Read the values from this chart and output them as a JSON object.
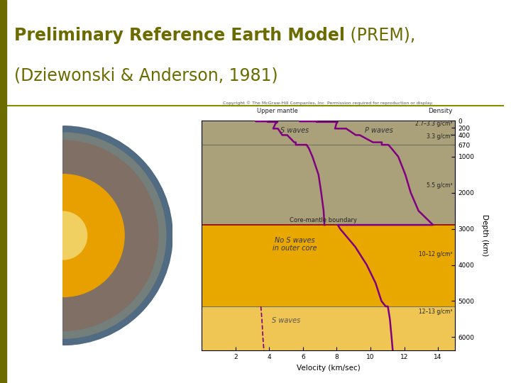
{
  "title_bold": "Preliminary Reference Earth Model",
  "title_normal_1": " (PREM),",
  "title_normal_2": "(Dziewonski & Anderson, 1981)",
  "title_color": "#6b6b00",
  "title_fontsize": 17,
  "bg_color": "#ffffff",
  "left_bar_color": "#6b6b00",
  "left_bar_width": 0.012,
  "divider_color": "#8b8b00",
  "divider_y": 0.725,
  "copyright_text": "Copyright © The McGraw-Hill Companies, Inc  Permission required for reproduction or display.",
  "upper_mantle_label": "Upper mantle",
  "density_label": "Density",
  "s_waves_label": "S waves",
  "p_waves_label": "P waves",
  "no_s_waves_label": "No S waves\nin outer core",
  "s_waves_inner_label": "S waves",
  "core_mantle_label": "Core-mantle boundary",
  "density_labels": [
    "2.7–3.3 g/cm³",
    "3.3 g/cm³",
    "5.5 g/cm³",
    "10–12 g/cm³",
    "12–13 g/cm³"
  ],
  "density_depths": [
    80,
    450,
    1800,
    3700,
    5300
  ],
  "xlabel": "Velocity (km/sec)",
  "ylabel": "Depth (km)",
  "mantle_color": "#a0a090",
  "outer_core_color": "#e8a800",
  "inner_core_color": "#f0c858",
  "crust_color": "#c8b890",
  "wave_color": "#800080",
  "boundary_color": "#8b0000",
  "xticks": [
    2,
    4,
    6,
    8,
    10,
    12,
    14
  ],
  "yticks": [
    0,
    200,
    400,
    670,
    1000,
    2000,
    3000,
    4000,
    5000,
    6000
  ]
}
